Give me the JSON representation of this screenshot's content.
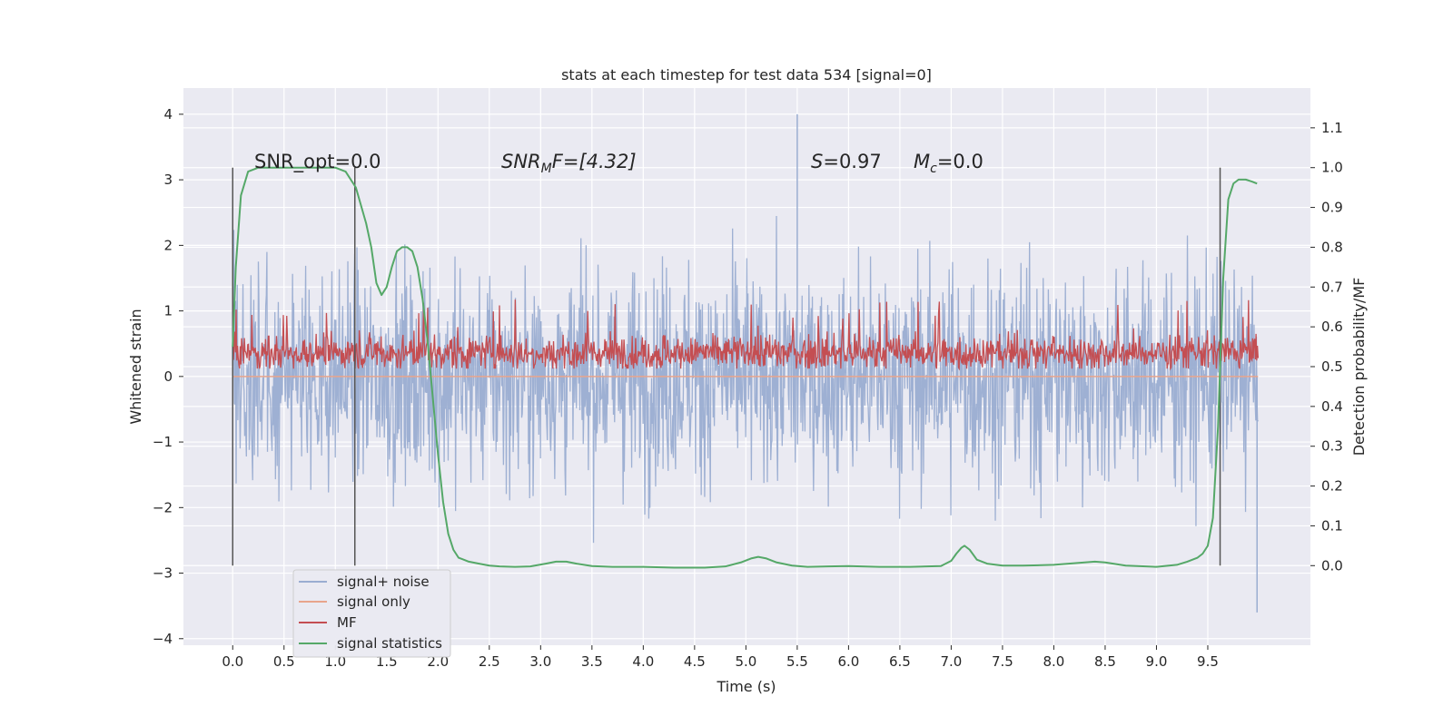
{
  "chart_data": {
    "type": "line",
    "title": "stats at each timestep for test data 534 [signal=0]",
    "xlabel": "Time (s)",
    "ylabel_left": "Whitened strain",
    "ylabel_right": "Detection probability/MF",
    "xlim": [
      -0.48,
      10.5
    ],
    "ylim_left": [
      -4.1,
      4.4
    ],
    "ylim_right": [
      -0.2,
      1.2
    ],
    "x_ticks": [
      "0.0",
      "0.5",
      "1.0",
      "1.5",
      "2.0",
      "2.5",
      "3.0",
      "3.5",
      "4.0",
      "4.5",
      "5.0",
      "5.5",
      "6.0",
      "6.5",
      "7.0",
      "7.5",
      "8.0",
      "8.5",
      "9.0",
      "9.5"
    ],
    "y_ticks_left": [
      "4",
      "3",
      "2",
      "1",
      "0",
      "−1",
      "−2",
      "−3",
      "−4"
    ],
    "y_ticks_right": [
      "1.1",
      "1.0",
      "0.9",
      "0.8",
      "0.7",
      "0.6",
      "0.5",
      "0.4",
      "0.3",
      "0.2",
      "0.1",
      "0.0"
    ],
    "grid": true,
    "legend_position": "lower-left",
    "annotations": {
      "snr_opt": "SNR_opt=0.0",
      "snr_mf_sym": "SNR",
      "snr_mf_sub": "M",
      "snr_mf_rest": "F=[4.32]",
      "s_sym": "S",
      "s_rest": "=0.97",
      "mc_sym": "M",
      "mc_sub": "c",
      "mc_rest": "=0.0"
    },
    "vertical_markers": [
      0.0,
      1.19,
      9.62
    ],
    "series": [
      {
        "name": "signal+ noise",
        "axis": "left",
        "color": "#9aadd1",
        "description_range": [
          0.0,
          9.99
        ],
        "typical_band": [
          -2.5,
          2.5
        ],
        "extremes": {
          "max": 4.0,
          "min": -3.6
        }
      },
      {
        "name": "signal only",
        "axis": "left",
        "color": "#e8a58c",
        "constant": 0.0
      },
      {
        "name": "MF",
        "axis": "right",
        "color": "#c44e52",
        "typical_band": [
          0.47,
          0.6
        ]
      },
      {
        "name": "signal statistics",
        "axis": "right",
        "color": "#55a868",
        "x": [
          0.0,
          0.03,
          0.08,
          0.15,
          0.25,
          0.4,
          0.6,
          0.8,
          1.0,
          1.1,
          1.2,
          1.3,
          1.35,
          1.4,
          1.45,
          1.5,
          1.55,
          1.6,
          1.65,
          1.7,
          1.75,
          1.8,
          1.85,
          1.9,
          1.95,
          2.0,
          2.05,
          2.1,
          2.15,
          2.2,
          2.25,
          2.3,
          2.4,
          2.5,
          2.6,
          2.75,
          2.9,
          3.05,
          3.15,
          3.25,
          3.35,
          3.5,
          3.7,
          4.0,
          4.3,
          4.6,
          4.8,
          4.95,
          5.05,
          5.12,
          5.2,
          5.3,
          5.45,
          5.6,
          5.8,
          6.0,
          6.3,
          6.6,
          6.9,
          7.0,
          7.05,
          7.1,
          7.13,
          7.18,
          7.25,
          7.35,
          7.5,
          7.7,
          8.0,
          8.2,
          8.4,
          8.5,
          8.7,
          9.0,
          9.2,
          9.3,
          9.4,
          9.45,
          9.5,
          9.55,
          9.6,
          9.65,
          9.7,
          9.75,
          9.8,
          9.87,
          9.93,
          9.98
        ],
        "y": [
          0.55,
          0.75,
          0.93,
          0.99,
          1.0,
          1.0,
          1.0,
          1.0,
          1.0,
          0.99,
          0.95,
          0.86,
          0.8,
          0.71,
          0.68,
          0.7,
          0.75,
          0.79,
          0.8,
          0.8,
          0.79,
          0.75,
          0.67,
          0.56,
          0.42,
          0.28,
          0.16,
          0.08,
          0.04,
          0.02,
          0.015,
          0.01,
          0.005,
          0.0,
          -0.002,
          -0.003,
          -0.002,
          0.005,
          0.01,
          0.01,
          0.005,
          -0.001,
          -0.003,
          -0.003,
          -0.005,
          -0.005,
          -0.002,
          0.008,
          0.018,
          0.022,
          0.018,
          0.008,
          0.0,
          -0.003,
          -0.002,
          -0.001,
          -0.003,
          -0.003,
          -0.001,
          0.012,
          0.03,
          0.045,
          0.05,
          0.04,
          0.015,
          0.005,
          0.0,
          0.0,
          0.002,
          0.006,
          0.01,
          0.008,
          0.0,
          -0.003,
          0.002,
          0.01,
          0.02,
          0.03,
          0.05,
          0.12,
          0.35,
          0.72,
          0.92,
          0.96,
          0.97,
          0.97,
          0.965,
          0.96
        ]
      }
    ]
  }
}
